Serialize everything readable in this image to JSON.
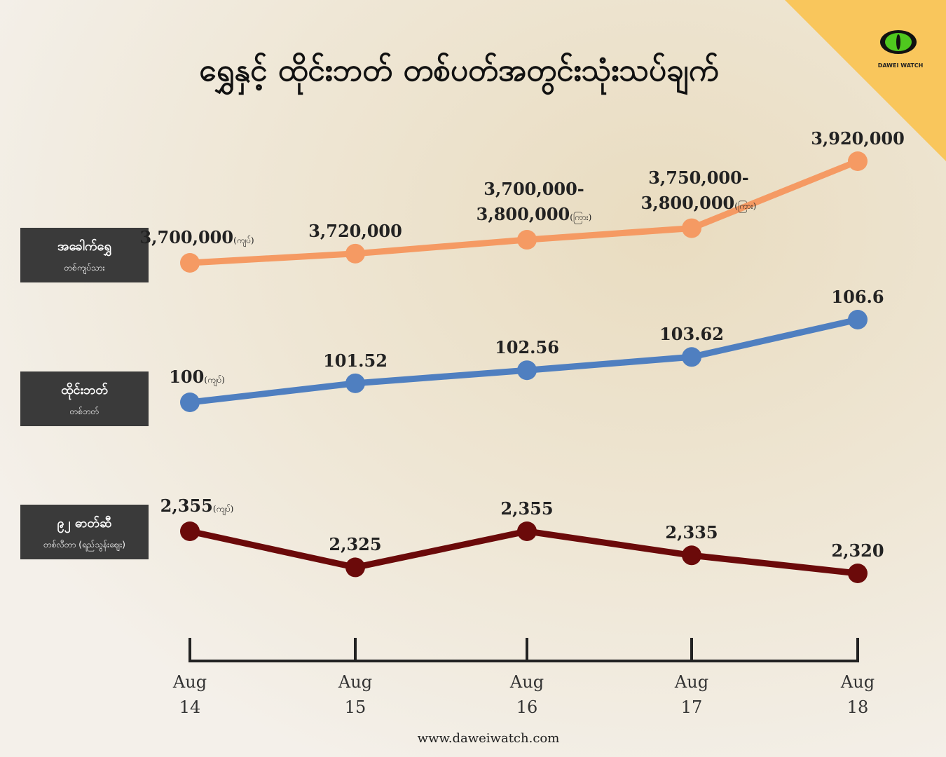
{
  "title": "ရွှေနှင့် ထိုင်းဘတ် တစ်ပတ်အတွင်းသုံးသပ်ချက်",
  "logo": "DAWEI WATCH",
  "footer": "www.daweiwatch.com",
  "chart_data": {
    "type": "line",
    "categories": [
      "Aug 14",
      "Aug 15",
      "Aug 16",
      "Aug 17",
      "Aug 18"
    ],
    "series": [
      {
        "name": "အခေါက်ရွှေ",
        "unit": "တစ်ကျပ်သား",
        "color": "#f59a63",
        "values": [
          3700000,
          3720000,
          3750000,
          3775000,
          3920000
        ],
        "value_labels": [
          "3,700,000",
          "3,720,000",
          "3,700,000-3,800,000",
          "3,750,000-3,800,000",
          "3,920,000"
        ],
        "value_notes": [
          "(ကျပ်)",
          null,
          "(ကြား)",
          "(ကြား)",
          null
        ],
        "ylim": [
          3700000,
          3920000
        ]
      },
      {
        "name": "ထိုင်းဘတ်",
        "unit": "တစ်ဘတ်",
        "color": "#4f7fc0",
        "values": [
          100,
          101.52,
          102.56,
          103.62,
          106.6
        ],
        "value_notes": [
          "(ကျပ်)",
          null,
          null,
          null,
          null
        ],
        "ylim": [
          100,
          106.6
        ]
      },
      {
        "name": "၉၂ ဓာတ်ဆီ",
        "unit": "တစ်လီတာ (ရည်သွန်းဈေး)",
        "color": "#6b0a0a",
        "values": [
          2355,
          2325,
          2355,
          2335,
          2320
        ],
        "value_labels": [
          "2,355",
          "2,325",
          "2,355",
          "2,335",
          "2,320"
        ],
        "value_notes": [
          "(ကျပ်)",
          null,
          null,
          null,
          null
        ],
        "ylim": [
          2320,
          2355
        ]
      }
    ]
  }
}
